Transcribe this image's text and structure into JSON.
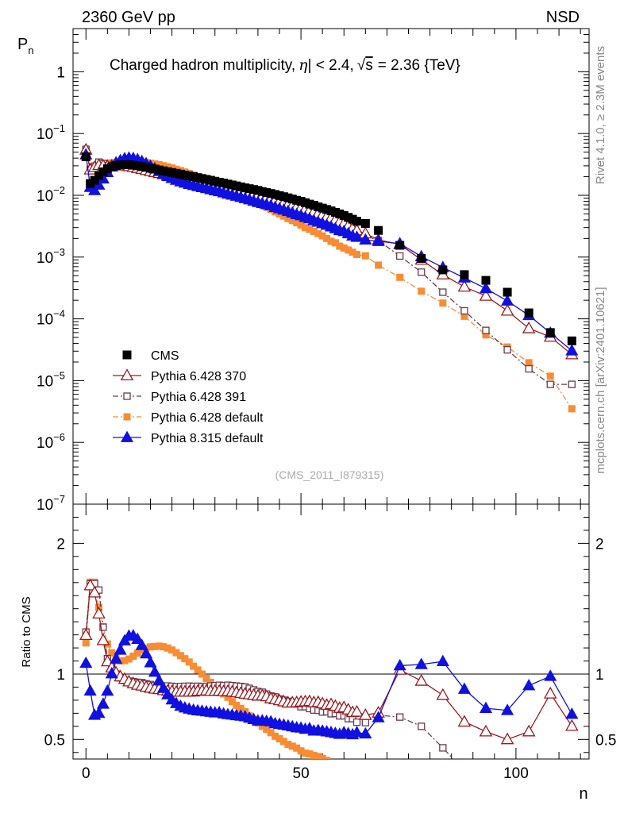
{
  "header": {
    "left": "2360 GeV pp",
    "right": "NSD"
  },
  "side_labels": {
    "right_top": "Rivet 4.1.0, ≥ 2.3M events",
    "right_bottom": "mcplots.cern.ch [arXiv:2401.10621]"
  },
  "colors": {
    "CMS": "#000000",
    "Pythia 6.428 370": "#9a1a1e",
    "Pythia 6.428 391": "#6b3a4c",
    "Pythia 6.428 default": "#f98c32",
    "Pythia 8.315 default": "#1010e0"
  },
  "chart_data": [
    {
      "panel": "main",
      "type": "scatter",
      "title": "Charged hadron multiplicity, |η| < 2.4, √s = 2.36 {TeV}",
      "title_parts": {
        "a": "Charged hadron multiplicity,",
        "eta": "η",
        "b": "| < 2.4,",
        "sqrt": "√",
        "s": "s",
        "c": "= 2.36 {TeV}"
      },
      "ylabel": "P",
      "ylabel_sub": "n",
      "yscale": "log",
      "ylim": [
        1e-07,
        5
      ],
      "xlim": [
        -3,
        117
      ],
      "y_tick_labels": [
        {
          "base": "1",
          "exp": "",
          "value": 1
        },
        {
          "base": "10",
          "exp": "−1",
          "value": 0.1
        },
        {
          "base": "10",
          "exp": "−2",
          "value": 0.01
        },
        {
          "base": "10",
          "exp": "−3",
          "value": 0.001
        },
        {
          "base": "10",
          "exp": "−4",
          "value": 0.0001
        },
        {
          "base": "10",
          "exp": "−5",
          "value": 1e-05
        },
        {
          "base": "10",
          "exp": "−6",
          "value": 1e-06
        },
        {
          "base": "10",
          "exp": "−7",
          "value": 1e-07
        }
      ],
      "watermark": "(CMS_2011_I879315)",
      "legend_position": "bottom-left",
      "series": [
        {
          "name": "CMS",
          "marker": "square",
          "x": [
            0,
            1,
            2,
            3,
            4,
            5,
            6,
            7,
            8,
            9,
            10,
            11,
            12,
            13,
            14,
            15,
            16,
            17,
            18,
            19,
            20,
            21,
            22,
            23,
            24,
            25,
            26,
            27,
            28,
            29,
            30,
            31,
            32,
            33,
            34,
            35,
            36,
            37,
            38,
            39,
            40,
            41,
            42,
            43,
            44,
            45,
            46,
            47,
            48,
            49,
            50,
            51,
            52,
            53,
            54,
            55,
            56,
            57,
            58,
            59,
            60,
            61,
            62,
            63,
            65,
            68,
            73,
            78,
            83,
            88,
            93,
            98,
            103,
            108,
            113
          ],
          "y": [
            0.042,
            0.0155,
            0.0175,
            0.021,
            0.024,
            0.027,
            0.0288,
            0.0303,
            0.031,
            0.0313,
            0.0312,
            0.0307,
            0.03,
            0.0291,
            0.0283,
            0.0274,
            0.0266,
            0.0257,
            0.0249,
            0.0241,
            0.0234,
            0.0227,
            0.022,
            0.0213,
            0.0206,
            0.02,
            0.0193,
            0.0187,
            0.0181,
            0.0175,
            0.0169,
            0.0163,
            0.0158,
            0.0152,
            0.0147,
            0.0142,
            0.0137,
            0.0132,
            0.0128,
            0.0124,
            0.012,
            0.0115,
            0.0111,
            0.0107,
            0.0103,
            0.0099,
            0.0095,
            0.0091,
            0.0087,
            0.0083,
            0.008,
            0.0076,
            0.0072,
            0.0069,
            0.0065,
            0.0062,
            0.0059,
            0.0056,
            0.0053,
            0.005,
            0.0047,
            0.0044,
            0.0041,
            0.0038,
            0.0035,
            0.0027,
            0.00155,
            0.00095,
            0.00062,
            0.00052,
            0.00042,
            0.00027,
            0.000125,
            6e-05,
            4.4e-05
          ]
        },
        {
          "name": "Pythia 6.428 370",
          "marker": "triangle-open",
          "line": "solid",
          "x": [
            0,
            1,
            2,
            3,
            4,
            5,
            6,
            7,
            8,
            9,
            10,
            11,
            12,
            13,
            14,
            15,
            16,
            17,
            18,
            19,
            20,
            21,
            22,
            23,
            24,
            25,
            26,
            27,
            28,
            29,
            30,
            31,
            32,
            33,
            34,
            35,
            36,
            37,
            38,
            39,
            40,
            41,
            42,
            43,
            44,
            45,
            46,
            47,
            48,
            49,
            50,
            51,
            52,
            53,
            54,
            55,
            56,
            57,
            58,
            59,
            60,
            61,
            62,
            63,
            65,
            68,
            73,
            78,
            83,
            88,
            93,
            98,
            103,
            108,
            113
          ],
          "y": [
            0.0545,
            0.026,
            0.0284,
            0.0307,
            0.0302,
            0.0296,
            0.0302,
            0.0306,
            0.0304,
            0.0301,
            0.0294,
            0.0285,
            0.0275,
            0.0265,
            0.0255,
            0.0245,
            0.0236,
            0.0227,
            0.0218,
            0.021,
            0.0203,
            0.0196,
            0.019,
            0.0184,
            0.0178,
            0.0173,
            0.0168,
            0.0163,
            0.0158,
            0.0152,
            0.0147,
            0.0142,
            0.0137,
            0.0132,
            0.0127,
            0.0122,
            0.0117,
            0.0112,
            0.0108,
            0.0104,
            0.01,
            0.0096,
            0.0092,
            0.0087,
            0.0083,
            0.0079,
            0.0075,
            0.0071,
            0.0068,
            0.0065,
            0.0063,
            0.006,
            0.0057,
            0.0054,
            0.0051,
            0.0048,
            0.0045,
            0.0043,
            0.004,
            0.0037,
            0.0035,
            0.0032,
            0.0029,
            0.0027,
            0.0024,
            0.0019,
            0.0016,
            0.0009,
            0.00052,
            0.00033,
            0.000235,
            0.000135,
            7e-05,
            5.1e-05,
            2.65e-05
          ]
        },
        {
          "name": "Pythia 6.428 391",
          "marker": "square-open",
          "line": "dashdot",
          "x": [
            0,
            1,
            2,
            3,
            4,
            5,
            6,
            7,
            8,
            9,
            10,
            11,
            12,
            13,
            14,
            15,
            16,
            17,
            18,
            19,
            20,
            21,
            22,
            23,
            24,
            25,
            26,
            27,
            28,
            29,
            30,
            31,
            32,
            33,
            34,
            35,
            36,
            37,
            38,
            39,
            40,
            41,
            42,
            43,
            44,
            45,
            46,
            47,
            48,
            49,
            50,
            51,
            52,
            53,
            54,
            55,
            56,
            57,
            58,
            59,
            60,
            61,
            62,
            63,
            65,
            68,
            73,
            78,
            83,
            88,
            93,
            98,
            103,
            108,
            113
          ],
          "y": [
            0.0555,
            0.0262,
            0.0296,
            0.0345,
            0.0326,
            0.0302,
            0.0305,
            0.0303,
            0.0301,
            0.0298,
            0.0295,
            0.0289,
            0.0281,
            0.0272,
            0.0262,
            0.0252,
            0.0242,
            0.0234,
            0.0226,
            0.0219,
            0.0212,
            0.0205,
            0.0199,
            0.0193,
            0.0187,
            0.0181,
            0.0175,
            0.0169,
            0.0164,
            0.0159,
            0.0154,
            0.0149,
            0.0144,
            0.0139,
            0.0134,
            0.0129,
            0.0124,
            0.0119,
            0.0114,
            0.0109,
            0.0104,
            0.0099,
            0.0094,
            0.0089,
            0.0085,
            0.008,
            0.0076,
            0.0072,
            0.0068,
            0.0064,
            0.006,
            0.0057,
            0.0053,
            0.005,
            0.0047,
            0.0044,
            0.0042,
            0.0039,
            0.0037,
            0.0034,
            0.0032,
            0.0029,
            0.0027,
            0.0024,
            0.0022,
            0.00185,
            0.00104,
            0.00057,
            0.00027,
            0.000135,
            6.5e-05,
            3.15e-05,
            1.55e-05,
            8.7e-06,
            8.7e-06
          ]
        },
        {
          "name": "Pythia 6.428 default",
          "marker": "square",
          "line": "dashdot",
          "x": [
            0,
            1,
            2,
            3,
            4,
            5,
            6,
            7,
            8,
            9,
            10,
            11,
            12,
            13,
            14,
            15,
            16,
            17,
            18,
            19,
            20,
            21,
            22,
            23,
            24,
            25,
            26,
            27,
            28,
            29,
            30,
            31,
            32,
            33,
            34,
            35,
            36,
            37,
            38,
            39,
            40,
            41,
            42,
            43,
            44,
            45,
            46,
            47,
            48,
            49,
            50,
            51,
            52,
            53,
            54,
            55,
            56,
            57,
            58,
            59,
            60,
            61,
            62,
            63,
            65,
            68,
            73,
            78,
            83,
            88,
            93,
            98,
            103,
            108,
            113
          ],
          "y": [
            0.052,
            0.0264,
            0.0298,
            0.0317,
            0.0327,
            0.0332,
            0.0335,
            0.0338,
            0.0341,
            0.0345,
            0.0348,
            0.0349,
            0.0348,
            0.0345,
            0.0339,
            0.0331,
            0.0322,
            0.0312,
            0.0301,
            0.0289,
            0.0277,
            0.0264,
            0.0251,
            0.0238,
            0.0225,
            0.0212,
            0.0199,
            0.0187,
            0.0175,
            0.0164,
            0.0153,
            0.0143,
            0.0134,
            0.0125,
            0.0116,
            0.0108,
            0.0101,
            0.0094,
            0.0087,
            0.0081,
            0.0075,
            0.0069,
            0.0064,
            0.0059,
            0.0054,
            0.005,
            0.0046,
            0.0042,
            0.0039,
            0.0036,
            0.0033,
            0.003,
            0.0028,
            0.0026,
            0.0024,
            0.0022,
            0.002,
            0.0018,
            0.0017,
            0.0015,
            0.0014,
            0.0013,
            0.0012,
            0.0011,
            0.00105,
            0.00074,
            0.00047,
            0.00028,
            0.00018,
            0.00011,
            5.5e-05,
            3.5e-05,
            1.95e-05,
            1.18e-05,
            3.5e-06
          ]
        },
        {
          "name": "Pythia 8.315 default",
          "marker": "triangle",
          "line": "solid",
          "x": [
            0,
            1,
            2,
            3,
            4,
            5,
            6,
            7,
            8,
            9,
            10,
            11,
            12,
            13,
            14,
            15,
            16,
            17,
            18,
            19,
            20,
            21,
            22,
            23,
            24,
            25,
            26,
            27,
            28,
            29,
            30,
            31,
            32,
            33,
            34,
            35,
            36,
            37,
            38,
            39,
            40,
            41,
            42,
            43,
            44,
            45,
            46,
            47,
            48,
            49,
            50,
            51,
            52,
            53,
            54,
            55,
            56,
            57,
            58,
            59,
            60,
            61,
            62,
            63,
            65,
            68,
            73,
            78,
            83,
            88,
            93,
            98,
            103,
            108,
            113
          ],
          "y": [
            0.0455,
            0.0135,
            0.012,
            0.0147,
            0.0185,
            0.0235,
            0.0289,
            0.0338,
            0.0367,
            0.0393,
            0.0403,
            0.0397,
            0.038,
            0.0355,
            0.0327,
            0.0298,
            0.027,
            0.0244,
            0.0222,
            0.0203,
            0.0188,
            0.0176,
            0.0166,
            0.0158,
            0.0151,
            0.0145,
            0.0139,
            0.0134,
            0.0129,
            0.0124,
            0.0119,
            0.0115,
            0.011,
            0.0105,
            0.0101,
            0.0097,
            0.0093,
            0.0089,
            0.0085,
            0.0081,
            0.0077,
            0.0074,
            0.0071,
            0.0068,
            0.0064,
            0.0061,
            0.0058,
            0.0055,
            0.0052,
            0.0049,
            0.0047,
            0.0044,
            0.0042,
            0.0039,
            0.0037,
            0.0035,
            0.0033,
            0.0031,
            0.0029,
            0.0027,
            0.0026,
            0.0024,
            0.0022,
            0.0021,
            0.0019,
            0.0018,
            0.00165,
            0.00102,
            0.00068,
            0.00046,
            0.00031,
            0.000195,
            0.000114,
            5.9e-05,
            3.05e-05
          ]
        }
      ]
    },
    {
      "panel": "ratio",
      "type": "line",
      "ylabel": "Ratio to CMS",
      "xlabel": "n",
      "ylim": [
        0.35,
        2.3
      ],
      "xlim": [
        -3,
        117
      ],
      "y_ticks": [
        {
          "value": 0.5,
          "label": "0.5"
        },
        {
          "value": 1,
          "label": "1"
        },
        {
          "value": 2,
          "label": "2"
        }
      ],
      "x_ticks": [
        {
          "value": 0,
          "label": "0"
        },
        {
          "value": 50,
          "label": "50"
        },
        {
          "value": 100,
          "label": "100"
        }
      ]
    }
  ]
}
